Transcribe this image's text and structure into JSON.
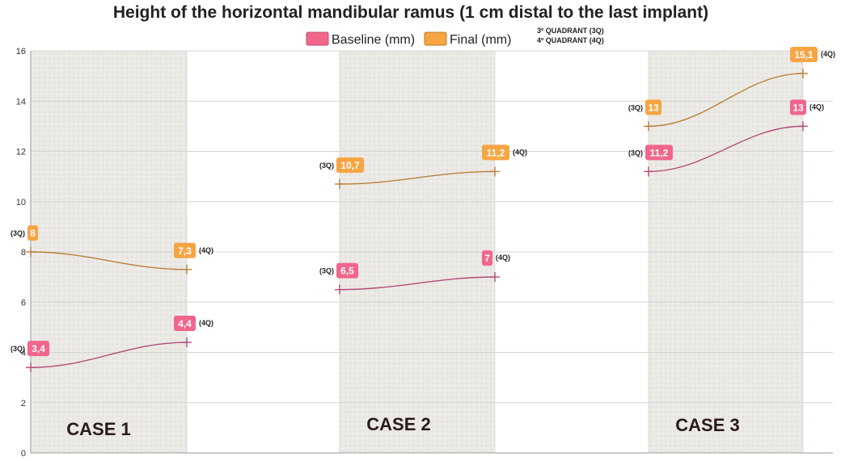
{
  "chart_data": {
    "type": "line",
    "title": "Height of the horizontal mandibular ramus    (1  cm distal to the last implant)",
    "legend": {
      "placement": "top-center",
      "items": [
        "Baseline (mm)",
        "Final (mm)"
      ],
      "notes": [
        "3º QUADRANT (3Q)",
        "4º QUADRANT (4Q)"
      ]
    },
    "ylim": [
      0,
      16
    ],
    "yticks": [
      "0",
      "2",
      "4",
      "6",
      "8",
      "10",
      "12",
      "14",
      "16"
    ],
    "grid": true,
    "groups": [
      {
        "label": "CASE 1",
        "x": [
          "(3Q)",
          "(4Q)"
        ]
      },
      {
        "label": "CASE 2",
        "x": [
          "(3Q)",
          "(4Q)"
        ]
      },
      {
        "label": "CASE 3",
        "x": [
          "(3Q)",
          "(4Q)"
        ]
      }
    ],
    "series": [
      {
        "name": "Baseline (mm)",
        "color": "#f2668b",
        "line_color": "#b04c78",
        "values": [
          [
            3.4,
            4.4
          ],
          [
            6.5,
            7.0
          ],
          [
            11.2,
            13.0
          ]
        ],
        "labels": [
          [
            "3,4",
            "4,4"
          ],
          [
            "6,5",
            "7"
          ],
          [
            "11,2",
            "13"
          ]
        ]
      },
      {
        "name": "Final (mm)",
        "color": "#f7a543",
        "line_color": "#b8803a",
        "values": [
          [
            8.0,
            7.3
          ],
          [
            10.7,
            11.2
          ],
          [
            13.0,
            15.1
          ]
        ],
        "labels": [
          [
            "8",
            "7,3"
          ],
          [
            "10,7",
            "11,2"
          ],
          [
            "13",
            "15,1"
          ]
        ]
      }
    ]
  }
}
